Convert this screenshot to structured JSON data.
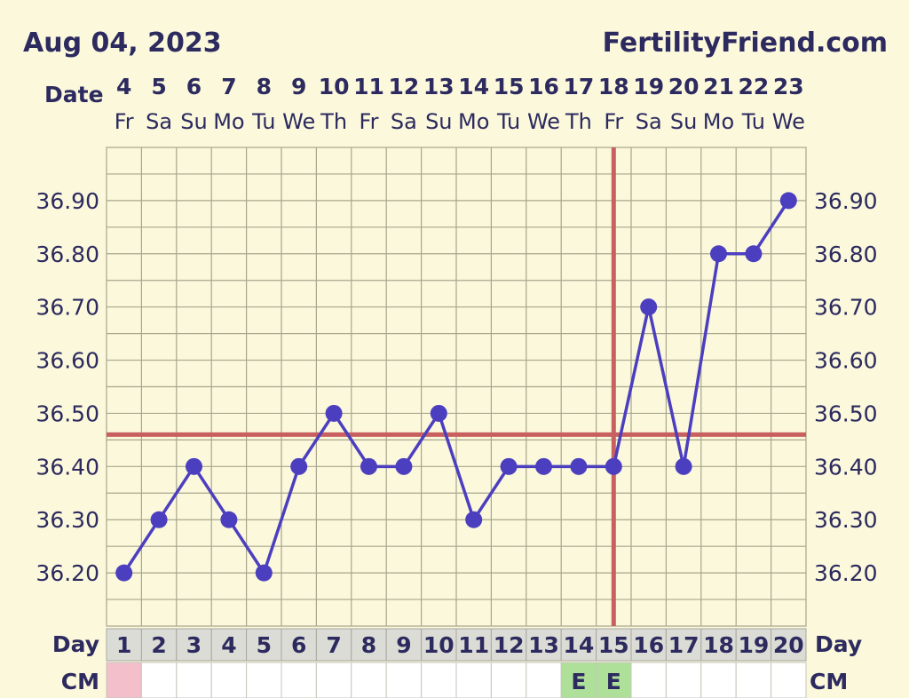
{
  "header": {
    "date": "Aug 04, 2023",
    "site": "FertilityFriend.com"
  },
  "labels": {
    "date_row": "Date",
    "day_row": "Day",
    "cm_row": "CM"
  },
  "colors": {
    "background": "#fbf8dc",
    "grid": "#a8a68c",
    "line": "#4b3fbf",
    "coverline": "#c96060",
    "text": "#2c2a5e",
    "cm_pink": "#f2bfcb",
    "cm_green": "#aee09a"
  },
  "chart_data": {
    "type": "line",
    "x": [
      1,
      2,
      3,
      4,
      5,
      6,
      7,
      8,
      9,
      10,
      11,
      12,
      13,
      14,
      15,
      16,
      17,
      18,
      19,
      20
    ],
    "dates": [
      "4",
      "5",
      "6",
      "7",
      "8",
      "9",
      "10",
      "11",
      "12",
      "13",
      "14",
      "15",
      "16",
      "17",
      "18",
      "19",
      "20",
      "21",
      "22",
      "23"
    ],
    "weekdays": [
      "Fr",
      "Sa",
      "Su",
      "Mo",
      "Tu",
      "We",
      "Th",
      "Fr",
      "Sa",
      "Su",
      "Mo",
      "Tu",
      "We",
      "Th",
      "Fr",
      "Sa",
      "Su",
      "Mo",
      "Tu",
      "We"
    ],
    "series": [
      {
        "values": [
          36.2,
          36.3,
          36.4,
          36.3,
          36.2,
          36.4,
          36.5,
          36.4,
          36.4,
          36.5,
          36.3,
          36.4,
          36.4,
          36.4,
          36.4,
          36.7,
          36.4,
          36.8,
          36.8,
          36.9
        ]
      }
    ],
    "yticks": [
      "36.90",
      "36.80",
      "36.70",
      "36.60",
      "36.50",
      "36.40",
      "36.30",
      "36.20"
    ],
    "ylim": [
      36.1,
      37.0
    ],
    "coverline": 36.46,
    "ovulation_day": 15,
    "cervical_mucus": [
      "",
      "",
      "",
      "",
      "",
      "",
      "",
      "",
      "",
      "",
      "",
      "",
      "",
      "E",
      "E",
      "",
      "",
      "",
      "",
      ""
    ],
    "cervical_mucus_colors": [
      "pink",
      "",
      "",
      "",
      "",
      "",
      "",
      "",
      "",
      "",
      "",
      "",
      "",
      "green",
      "green",
      "",
      "",
      "",
      "",
      ""
    ],
    "grid": true
  }
}
